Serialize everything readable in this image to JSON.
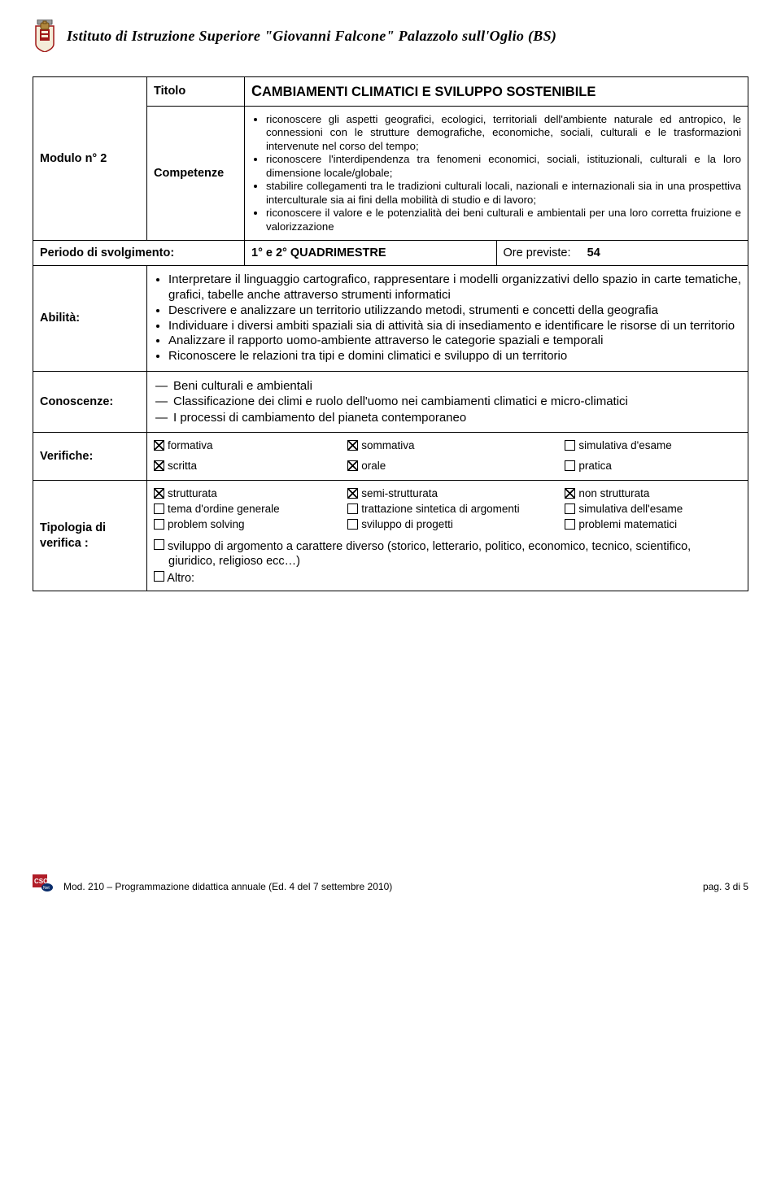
{
  "header": {
    "institute": "Istituto di Istruzione Superiore \"Giovanni Falcone\" Palazzolo sull'Oglio (BS)"
  },
  "module": {
    "label": "Modulo n° 2",
    "titolo_label": "Titolo",
    "titolo_value": "CAMBIAMENTI CLIMATICI E SVILUPPO SOSTENIBILE",
    "competenze_label": "Competenze",
    "competenze_items": [
      "riconoscere gli aspetti geografici, ecologici, territoriali dell'ambiente naturale ed antropico, le connessioni con le strutture demografiche, economiche, sociali, culturali e le trasformazioni intervenute nel corso del tempo;",
      "riconoscere l'interdipendenza tra fenomeni economici, sociali, istituzionali, culturali e la loro dimensione locale/globale;",
      "stabilire collegamenti tra le tradizioni culturali locali, nazionali e internazionali sia in una prospettiva interculturale sia ai fini della mobilità di studio e di lavoro;",
      "riconoscere il valore e le potenzialità dei beni culturali e ambientali per una loro corretta fruizione e valorizzazione"
    ]
  },
  "periodo": {
    "label": "Periodo di svolgimento:",
    "value": "1° e 2° QUADRIMESTRE",
    "ore_label": "Ore previste:",
    "ore_value": "54"
  },
  "abilita": {
    "label": "Abilità:",
    "items": [
      "Interpretare il linguaggio cartografico, rappresentare i modelli organizzativi dello spazio in carte tematiche, grafici, tabelle anche attraverso strumenti informatici",
      "Descrivere e analizzare un territorio utilizzando metodi, strumenti e concetti della geografia",
      "Individuare i diversi ambiti spaziali sia di attività sia di insediamento e identificare le risorse di un territorio",
      "Analizzare il rapporto uomo-ambiente attraverso le categorie spaziali e temporali",
      "Riconoscere le relazioni tra tipi e domini climatici e sviluppo di un territorio"
    ]
  },
  "conoscenze": {
    "label": "Conoscenze:",
    "items": [
      "Beni culturali e ambientali",
      "Classificazione dei climi e ruolo dell'uomo nei cambiamenti climatici e micro-climatici",
      "I processi di cambiamento del pianeta contemporaneo"
    ]
  },
  "verifiche": {
    "label": "Verifiche:",
    "row1": [
      {
        "label": "formativa",
        "checked": true
      },
      {
        "label": "sommativa",
        "checked": true
      },
      {
        "label": "simulativa d'esame",
        "checked": false
      }
    ],
    "row2": [
      {
        "label": "scritta",
        "checked": true
      },
      {
        "label": "orale",
        "checked": true
      },
      {
        "label": "pratica",
        "checked": false
      }
    ]
  },
  "tipologia": {
    "label": "Tipologia di verifica :",
    "grid": [
      [
        {
          "label": "strutturata",
          "checked": true
        },
        {
          "label": "semi-strutturata",
          "checked": true
        },
        {
          "label": "non strutturata",
          "checked": true
        }
      ],
      [
        {
          "label": "tema d'ordine generale",
          "checked": false
        },
        {
          "label": "trattazione sintetica di argomenti",
          "checked": false
        },
        {
          "label": "simulativa dell'esame",
          "checked": false
        }
      ],
      [
        {
          "label": "problem solving",
          "checked": false
        },
        {
          "label": "sviluppo di progetti",
          "checked": false
        },
        {
          "label": "problemi matematici",
          "checked": false
        }
      ]
    ],
    "long_item": {
      "label": "sviluppo di argomento a carattere diverso (storico, letterario, politico, economico, tecnico, scientifico, giuridico, religioso ecc…)",
      "checked": false
    },
    "altro": {
      "label": "Altro:",
      "checked": false
    }
  },
  "footer": {
    "left": "Mod. 210 – Programmazione didattica annuale  (Ed. 4 del 7 settembre 2010)",
    "right": "pag. 3 di 5"
  },
  "colors": {
    "text": "#000000",
    "bg": "#ffffff",
    "border": "#000000",
    "logo_red": "#a01818",
    "logo_bag": "#b0873e",
    "csq_red": "#b01d28",
    "csq_blue": "#0a2d6b"
  }
}
